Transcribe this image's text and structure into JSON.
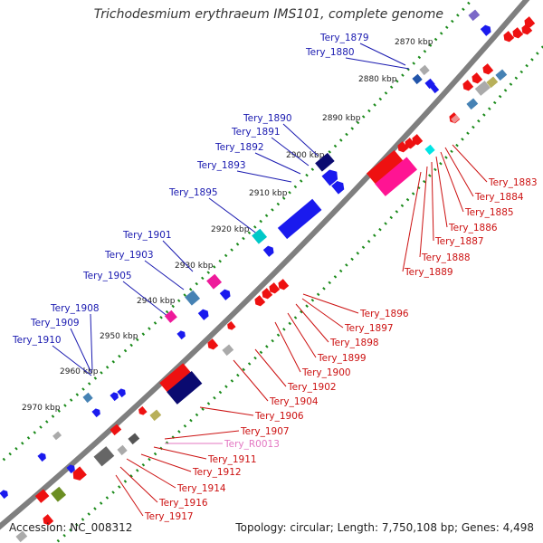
{
  "title": "Trichodesmium erythraeum IMS101, complete genome",
  "footer": {
    "accession": "Accession: NC_008312",
    "topology": "Topology: circular; Length: 7,750,108 bp; Genes: 4,498"
  },
  "colors": {
    "backbone": "#7f7f7f",
    "ticks": "#1a8a1a",
    "label_left": "#1a1ab0",
    "label_right": "#cc1111",
    "label_rna": "#e377c2"
  },
  "kbp_ticks": [
    "2870 kbp",
    "2880 kbp",
    "2890 kbp",
    "2900 kbp",
    "2910 kbp",
    "2920 kbp",
    "2930 kbp",
    "2940 kbp",
    "2950 kbp",
    "2960 kbp",
    "2970 kbp"
  ],
  "genes_left": [
    "Tery_1879",
    "Tery_1880",
    "Tery_1890",
    "Tery_1891",
    "Tery_1892",
    "Tery_1893",
    "Tery_1895",
    "Tery_1901",
    "Tery_1903",
    "Tery_1905",
    "Tery_1908",
    "Tery_1909",
    "Tery_1910"
  ],
  "genes_right": [
    "Tery_1883",
    "Tery_1884",
    "Tery_1885",
    "Tery_1886",
    "Tery_1887",
    "Tery_1888",
    "Tery_1889",
    "Tery_1896",
    "Tery_1897",
    "Tery_1898",
    "Tery_1899",
    "Tery_1900",
    "Tery_1902",
    "Tery_1904",
    "Tery_1906",
    "Tery_1907",
    "Tery_R0013",
    "Tery_1911",
    "Tery_1912",
    "Tery_1914",
    "Tery_1916",
    "Tery_1917"
  ]
}
